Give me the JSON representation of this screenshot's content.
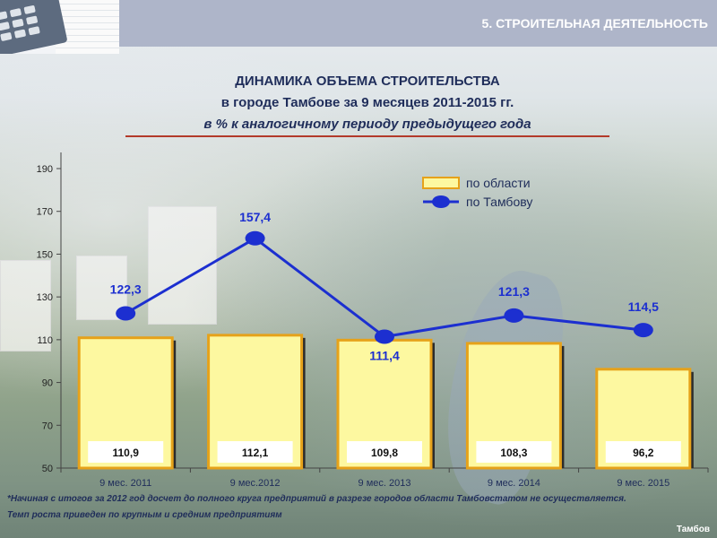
{
  "header": {
    "section_title": "5.   СТРОИТЕЛЬНАЯ ДЕЯТЕЛЬНОСТЬ"
  },
  "chart_title": {
    "line1": "ДИНАМИКА ОБЪЕМА СТРОИТЕЛЬСТВА",
    "line2": "в городе Тамбове за 9 месяцев 2011-2015 гг.",
    "line3": "в % к аналогичному периоду предыдущего года"
  },
  "footnotes": {
    "line1": "*Начиная с итогов за 2012 год досчет до полного круга предприятий в разрезе городов области Тамбовстатом не осуществляется.",
    "line2": "Темп роста приведен по крупным и средним предприятиям"
  },
  "city_label": "Тамбов",
  "chart_data": {
    "type": "bar",
    "categories": [
      "9 мес.  2011",
      "9 мес.2012",
      "9 мес. 2013",
      "9 мес. 2014",
      "9 мес. 2015"
    ],
    "series": [
      {
        "name": "по области",
        "type": "bar",
        "values": [
          110.9,
          112.1,
          109.8,
          108.3,
          96.2
        ],
        "labels": [
          "110,9",
          "112,1",
          "109,8",
          "108,3",
          "96,2"
        ]
      },
      {
        "name": "по Тамбову",
        "type": "line",
        "values": [
          122.3,
          157.4,
          111.4,
          121.3,
          114.5
        ],
        "labels": [
          "122,3",
          "157,4",
          "111,4",
          "121,3",
          "114,5"
        ]
      }
    ],
    "ylim": [
      50,
      190
    ],
    "yticks": [
      50,
      70,
      90,
      110,
      130,
      150,
      170,
      190
    ],
    "legend_position": "top-right",
    "colors": {
      "bar_fill": "#fdf8a0",
      "bar_edge": "#e6a21a",
      "line": "#1c2fd0",
      "text": "#1f2d5a"
    }
  }
}
